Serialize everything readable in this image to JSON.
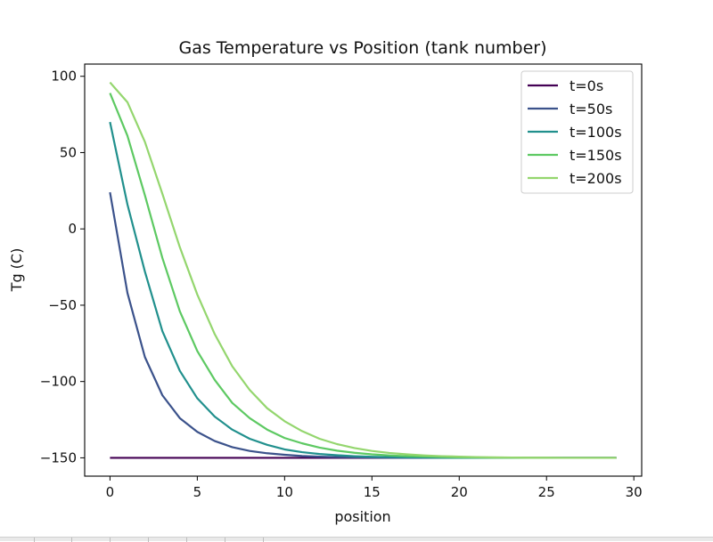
{
  "chart_data": {
    "type": "line",
    "title": "Gas Temperature vs Position (tank number)",
    "xlabel": "position",
    "ylabel": "Tg (C)",
    "xlim": [
      -1.45,
      30.45
    ],
    "ylim": [
      -162,
      108
    ],
    "xticks": [
      0,
      5,
      10,
      15,
      20,
      25,
      30
    ],
    "yticks": [
      -150,
      -100,
      -50,
      0,
      50,
      100
    ],
    "ytick_labels": [
      "−150",
      "−100",
      "−50",
      "0",
      "50",
      "100"
    ],
    "grid": false,
    "legend_position": "top-right",
    "x": [
      0,
      1,
      2,
      3,
      4,
      5,
      6,
      7,
      8,
      9,
      10,
      11,
      12,
      13,
      14,
      15,
      16,
      17,
      18,
      19,
      20,
      21,
      22,
      23,
      24,
      25,
      26,
      27,
      28,
      29
    ],
    "series": [
      {
        "name": "t=0s",
        "color": "#440154",
        "values": [
          -150,
          -150,
          -150,
          -150,
          -150,
          -150,
          -150,
          -150,
          -150,
          -150,
          -150,
          -150,
          -150,
          -150,
          -150,
          -150,
          -150,
          -150,
          -150,
          -150,
          -150,
          -150,
          -150,
          -150,
          -150,
          -150,
          -150,
          -150,
          -150,
          -150
        ]
      },
      {
        "name": "t=50s",
        "color": "#3b528b",
        "values": [
          24,
          -42,
          -84,
          -109,
          -124,
          -133,
          -139,
          -143,
          -145.5,
          -147,
          -148,
          -148.8,
          -149.2,
          -149.5,
          -149.7,
          -149.8,
          -149.9,
          -150,
          -150,
          -150,
          -150,
          -150,
          -150,
          -150,
          -150,
          -150,
          -150,
          -150,
          -150,
          -150
        ]
      },
      {
        "name": "t=100s",
        "color": "#21908d",
        "values": [
          70,
          16,
          -28,
          -67,
          -93,
          -111,
          -123,
          -131.5,
          -137.5,
          -141.5,
          -144.5,
          -146.3,
          -147.5,
          -148.3,
          -148.9,
          -149.3,
          -149.5,
          -149.7,
          -149.8,
          -149.9,
          -150,
          -150,
          -150,
          -150,
          -150,
          -150,
          -150,
          -150,
          -150,
          -150
        ]
      },
      {
        "name": "t=150s",
        "color": "#5dc962",
        "values": [
          89,
          61,
          22,
          -19,
          -54,
          -80,
          -99,
          -114,
          -124,
          -131.5,
          -137,
          -140.5,
          -143.3,
          -145.3,
          -146.7,
          -147.7,
          -148.4,
          -148.9,
          -149.2,
          -149.5,
          -149.7,
          -149.8,
          -149.9,
          -149.9,
          -150,
          -150,
          -150,
          -150,
          -150,
          -150
        ]
      },
      {
        "name": "t=200s",
        "color": "#94d66e",
        "values": [
          96,
          83,
          57,
          23,
          -12,
          -43,
          -69,
          -90,
          -105.5,
          -117.5,
          -126,
          -132.5,
          -137.5,
          -141,
          -143.6,
          -145.5,
          -146.8,
          -147.7,
          -148.4,
          -148.9,
          -149.2,
          -149.5,
          -149.7,
          -149.8,
          -149.9,
          -149.9,
          -150,
          -150,
          -150,
          -150
        ]
      }
    ]
  }
}
